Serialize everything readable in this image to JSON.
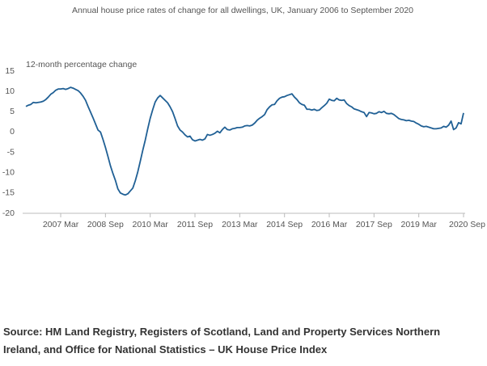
{
  "chart_data": {
    "type": "line",
    "title": "Annual house price rates of change for all dwellings, UK, January 2006 to September 2020",
    "y_label": "12-month percentage change",
    "source": "Source: HM Land Registry, Registers of Scotland, Land and Property Services Northern Ireland, and Office for National Statistics – UK House Price Index",
    "categories": [
      null,
      null,
      null,
      null,
      null,
      null,
      null,
      null,
      null,
      null,
      null,
      null,
      null,
      null,
      "2007 Mar",
      null,
      null,
      null,
      null,
      null,
      null,
      null,
      null,
      null,
      null,
      null,
      null,
      null,
      null,
      null,
      null,
      null,
      "2008 Sep",
      null,
      null,
      null,
      null,
      null,
      null,
      null,
      null,
      null,
      null,
      null,
      null,
      null,
      null,
      null,
      null,
      null,
      "2010 Mar",
      null,
      null,
      null,
      null,
      null,
      null,
      null,
      null,
      null,
      null,
      null,
      null,
      null,
      null,
      null,
      null,
      null,
      "2011 Sep",
      null,
      null,
      null,
      null,
      null,
      null,
      null,
      null,
      null,
      null,
      null,
      null,
      null,
      null,
      null,
      null,
      null,
      "2013 Mar",
      null,
      null,
      null,
      null,
      null,
      null,
      null,
      null,
      null,
      null,
      null,
      null,
      null,
      null,
      null,
      null,
      null,
      "2014 Sep",
      null,
      null,
      null,
      null,
      null,
      null,
      null,
      null,
      null,
      null,
      null,
      null,
      null,
      null,
      null,
      null,
      null,
      "2016 Mar",
      null,
      null,
      null,
      null,
      null,
      null,
      null,
      null,
      null,
      null,
      null,
      null,
      null,
      null,
      null,
      null,
      null,
      "2017 Sep",
      null,
      null,
      null,
      null,
      null,
      null,
      null,
      null,
      null,
      null,
      null,
      null,
      null,
      null,
      null,
      null,
      null,
      "2019 Mar",
      null,
      null,
      null,
      null,
      null,
      null,
      null,
      null,
      null,
      null,
      null,
      null,
      null,
      null,
      null,
      null,
      null,
      "2020 Sep"
    ],
    "series": [
      {
        "color": "#206095",
        "values": [
          6.3,
          6.6,
          6.8,
          7.3,
          7.2,
          7.3,
          7.4,
          7.6,
          8.0,
          8.6,
          9.3,
          9.7,
          10.3,
          10.6,
          10.6,
          10.7,
          10.5,
          10.7,
          11.0,
          10.8,
          10.5,
          10.2,
          9.6,
          8.8,
          7.8,
          6.3,
          4.9,
          3.5,
          2.0,
          0.5,
          0.0,
          -1.8,
          -3.8,
          -6.0,
          -8.3,
          -10.2,
          -11.9,
          -14.0,
          -15.0,
          -15.3,
          -15.5,
          -15.2,
          -14.5,
          -13.8,
          -12.0,
          -9.8,
          -7.2,
          -4.5,
          -2.0,
          0.8,
          3.4,
          5.5,
          7.4,
          8.4,
          9.0,
          8.4,
          7.8,
          7.2,
          6.2,
          5.0,
          3.3,
          1.5,
          0.5,
          0.0,
          -0.7,
          -1.2,
          -1.0,
          -1.9,
          -2.2,
          -2.0,
          -1.8,
          -2.0,
          -1.7,
          -0.6,
          -0.8,
          -0.6,
          -0.3,
          0.2,
          -0.2,
          0.6,
          1.2,
          0.6,
          0.5,
          0.8,
          0.9,
          1.1,
          1.1,
          1.2,
          1.5,
          1.6,
          1.5,
          1.7,
          2.2,
          2.9,
          3.4,
          3.8,
          4.3,
          5.5,
          6.2,
          6.7,
          6.8,
          7.7,
          8.3,
          8.6,
          8.7,
          9.0,
          9.2,
          9.4,
          8.6,
          8.0,
          7.2,
          6.8,
          6.6,
          5.6,
          5.6,
          5.4,
          5.6,
          5.3,
          5.4,
          6.0,
          6.5,
          7.1,
          8.1,
          7.8,
          7.7,
          8.3,
          7.9,
          7.8,
          7.9,
          7.0,
          6.5,
          6.2,
          5.7,
          5.5,
          5.3,
          5.0,
          4.8,
          3.8,
          4.8,
          4.7,
          4.5,
          4.6,
          5.0,
          4.8,
          5.1,
          4.6,
          4.5,
          4.6,
          4.3,
          3.8,
          3.3,
          3.1,
          3.0,
          2.8,
          2.9,
          2.7,
          2.6,
          2.2,
          1.9,
          1.5,
          1.3,
          1.4,
          1.2,
          1.0,
          0.8,
          0.8,
          0.9,
          1.0,
          1.4,
          1.2,
          1.7,
          2.7,
          0.6,
          1.0,
          2.3,
          2.0,
          4.7
        ]
      }
    ],
    "ylim": [
      -20,
      15
    ],
    "yticks": [
      15,
      10,
      5,
      0,
      -5,
      -10,
      -15,
      -20
    ],
    "grid": false
  }
}
